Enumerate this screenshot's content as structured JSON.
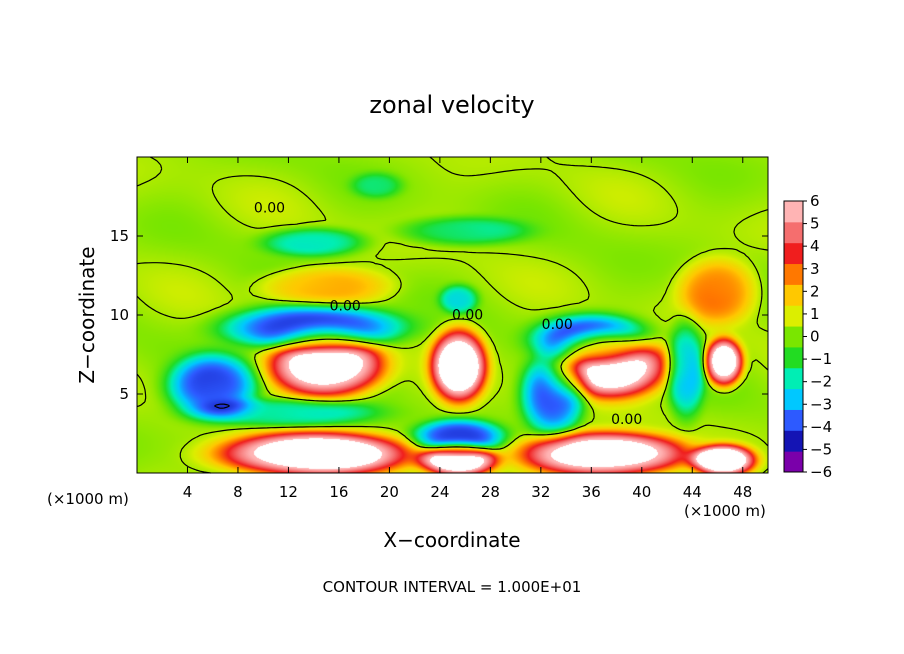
{
  "chart_data": {
    "type": "heatmap",
    "title": "zonal velocity",
    "xlabel": "X−coordinate",
    "ylabel": "Z−coordinate",
    "x_unit": "(×1000 m)",
    "z_unit": "(×1000 m)",
    "xlim": [
      0,
      50
    ],
    "ylim": [
      0,
      20
    ],
    "x_ticks": [
      4,
      8,
      12,
      16,
      20,
      24,
      28,
      32,
      36,
      40,
      44,
      48
    ],
    "y_ticks": [
      5,
      10,
      15
    ],
    "colorbar": {
      "ticks": [
        6,
        5,
        4,
        3,
        2,
        1,
        0,
        -1,
        -2,
        -3,
        -4,
        -5,
        -6
      ],
      "tick_labels": [
        "6",
        "5",
        "4",
        "3",
        "2",
        "1",
        "0",
        "−1",
        "−2",
        "−3",
        "−4",
        "−5",
        "−6"
      ],
      "range": [
        -6,
        6
      ],
      "colors_low_to_high": [
        "#7a00aa",
        "#1414b4",
        "#2d5aff",
        "#00c8ff",
        "#00eeb4",
        "#22dc22",
        "#7ae600",
        "#dcee00",
        "#ffc800",
        "#ff7800",
        "#f01e1e",
        "#f56e6e",
        "#ffb4b4"
      ]
    },
    "contour_labels": [
      "0.00",
      "0.00",
      "0.00",
      "0.00",
      "0.00"
    ],
    "contour_interval_text": "CONTOUR INTERVAL = 1.000E+01",
    "features": [
      {
        "x": 15,
        "z": 6.8,
        "value": 7,
        "rx": 4.5,
        "rz": 2.0
      },
      {
        "x": 25.5,
        "z": 6.8,
        "value": 7,
        "rx": 2.2,
        "rz": 2.3
      },
      {
        "x": 37.5,
        "z": 6.8,
        "value": 7,
        "rx": 4.5,
        "rz": 2.0
      },
      {
        "x": 46.5,
        "z": 7.0,
        "value": 7,
        "rx": 1.5,
        "rz": 1.5
      },
      {
        "x": 14,
        "z": 1.2,
        "value": 7,
        "rx": 7.5,
        "rz": 1.4
      },
      {
        "x": 37,
        "z": 1.2,
        "value": 7,
        "rx": 6.5,
        "rz": 1.4
      },
      {
        "x": 25.5,
        "z": 0.8,
        "value": 7,
        "rx": 3.0,
        "rz": 1.0
      },
      {
        "x": 46.5,
        "z": 0.8,
        "value": 7,
        "rx": 2.5,
        "rz": 1.0
      },
      {
        "x": 14,
        "z": 9.2,
        "value": -5,
        "rx": 7,
        "rz": 1.4
      },
      {
        "x": 6,
        "z": 5.5,
        "value": -4.5,
        "rx": 3.5,
        "rz": 2.0
      },
      {
        "x": 36,
        "z": 8.5,
        "value": -5,
        "rx": 4.5,
        "rz": 1.5
      },
      {
        "x": 33,
        "z": 5,
        "value": -4.5,
        "rx": 2.5,
        "rz": 2.5
      },
      {
        "x": 25.5,
        "z": 2.3,
        "value": -4.5,
        "rx": 3.5,
        "rz": 1.1
      },
      {
        "x": 12,
        "z": 3.8,
        "value": -2.5,
        "rx": 7,
        "rz": 0.9
      },
      {
        "x": 43.5,
        "z": 6.5,
        "value": -3,
        "rx": 1.5,
        "rz": 3
      },
      {
        "x": 14,
        "z": 14.6,
        "value": -2.5,
        "rx": 4,
        "rz": 0.9
      },
      {
        "x": 26,
        "z": 15.3,
        "value": -2,
        "rx": 5,
        "rz": 0.9
      },
      {
        "x": 19,
        "z": 18.2,
        "value": -1.5,
        "rx": 2,
        "rz": 0.8
      },
      {
        "x": 25.5,
        "z": 11.0,
        "value": -2.5,
        "rx": 1.5,
        "rz": 0.9
      },
      {
        "x": 15,
        "z": 11.8,
        "value": 2,
        "rx": 5,
        "rz": 1.2
      },
      {
        "x": 46,
        "z": 11.5,
        "value": 2.5,
        "rx": 3,
        "rz": 2.0
      }
    ]
  }
}
